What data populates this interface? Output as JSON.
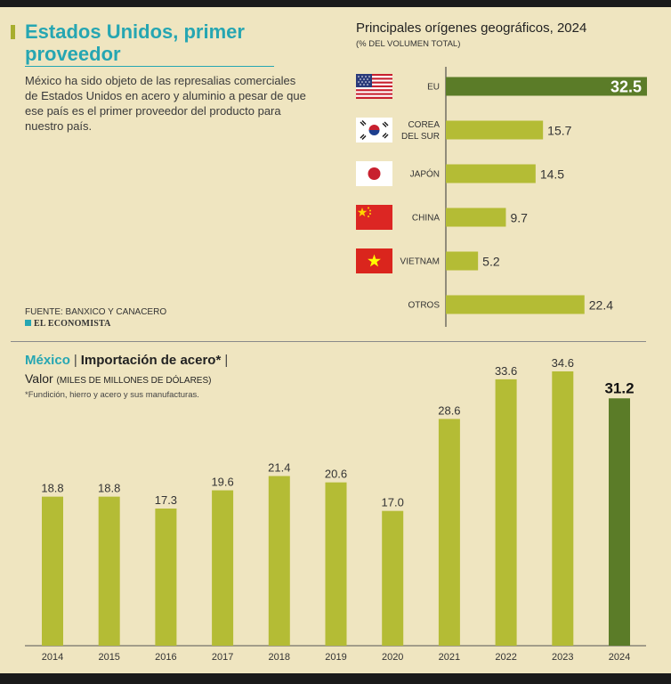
{
  "header": {
    "title": "Estados Unidos, primer proveedor",
    "lede": "México ha sido objeto de las represalias comerciales de Estados Unidos en acero y aluminio a pesar de que ese país es el primer proveedor del producto para nuestro país.",
    "source": "FUENTE: BANXICO Y CANACERO",
    "brand": "EL ECONOMISTA"
  },
  "origins": {
    "title": "Principales orígenes geográficos, 2024",
    "subtitle": "(% DEL VOLUMEN TOTAL)"
  },
  "imports": {
    "country": "México",
    "title": "Importación de acero*",
    "value_label": "Valor",
    "unit": "(MILES DE MILLONES DE DÓLARES)",
    "note": "*Fundición, hierro y acero y sus manufacturas."
  },
  "colors": {
    "bar": "#b4bc35",
    "highlight": "#5b7c28",
    "teal": "#26a6b2",
    "background": "#efe5c0"
  },
  "chart_data": [
    {
      "type": "bar",
      "orientation": "horizontal",
      "title": "Principales orígenes geográficos, 2024",
      "subtitle": "(% DEL VOLUMEN TOTAL)",
      "categories": [
        [
          "EU"
        ],
        [
          "COREA",
          "DEL SUR"
        ],
        [
          "JAPÓN"
        ],
        [
          "CHINA"
        ],
        [
          "VIETNAM"
        ],
        [
          "OTROS"
        ]
      ],
      "flags": [
        "us-flag-icon",
        "south-korea-flag-icon",
        "japan-flag-icon",
        "china-flag-icon",
        "vietnam-flag-icon",
        ""
      ],
      "values": [
        32.5,
        15.7,
        14.5,
        9.7,
        5.2,
        22.4
      ],
      "labels": [
        "32.5",
        "15.7",
        "14.5",
        "9.7",
        "5.2",
        "22.4"
      ],
      "highlight_index": 0,
      "xlim": [
        0,
        32.5
      ]
    },
    {
      "type": "bar",
      "title": "Importación de acero*",
      "ylabel": "Valor (MILES DE MILLONES DE DÓLARES)",
      "categories": [
        "2014",
        "2015",
        "2016",
        "2017",
        "2018",
        "2019",
        "2020",
        "2021",
        "2022",
        "2023",
        "2024"
      ],
      "values": [
        18.8,
        18.8,
        17.3,
        19.6,
        21.4,
        20.6,
        17.0,
        28.6,
        33.6,
        34.6,
        31.2
      ],
      "labels": [
        "18.8",
        "18.8",
        "17.3",
        "19.6",
        "21.4",
        "20.6",
        "17.0",
        "28.6",
        "33.6",
        "34.6",
        "31.2"
      ],
      "highlight_index": 10,
      "ylim": [
        0,
        34.6
      ]
    }
  ]
}
